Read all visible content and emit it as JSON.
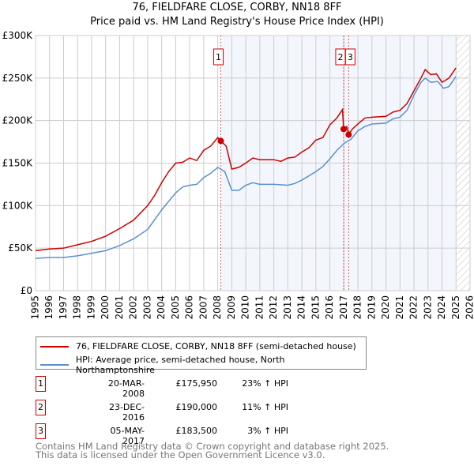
{
  "chart_data": {
    "type": "line",
    "title": "76, FIELDFARE CLOSE, CORBY, NN18 8FF",
    "subtitle": "Price paid vs. HM Land Registry's House Price Index (HPI)",
    "xlim": [
      1995,
      2026
    ],
    "ylim": [
      0,
      300000
    ],
    "x_ticks": [
      "1995",
      "1996",
      "1997",
      "1998",
      "1999",
      "2000",
      "2001",
      "2002",
      "2003",
      "2004",
      "2005",
      "2006",
      "2007",
      "2008",
      "2009",
      "2010",
      "2011",
      "2012",
      "2013",
      "2014",
      "2015",
      "2016",
      "2017",
      "2018",
      "2019",
      "2020",
      "2021",
      "2022",
      "2023",
      "2024",
      "2025",
      "2026"
    ],
    "y_ticks": [
      {
        "v": 0,
        "label": "£0"
      },
      {
        "v": 50000,
        "label": "£50K"
      },
      {
        "v": 100000,
        "label": "£100K"
      },
      {
        "v": 150000,
        "label": "£150K"
      },
      {
        "v": 200000,
        "label": "£200K"
      },
      {
        "v": 250000,
        "label": "£250K"
      },
      {
        "v": 300000,
        "label": "£300K"
      }
    ],
    "grid": true,
    "shaded_from": 2008.22,
    "hatched_from": 2025.0,
    "series": [
      {
        "name": "76, FIELDFARE CLOSE, CORBY, NN18 8FF (semi-detached house)",
        "color": "#cc0000",
        "x": [
          1995,
          1996,
          1997,
          1998,
          1999,
          2000,
          2001,
          2002,
          2003,
          2003.5,
          2004,
          2004.5,
          2005,
          2005.5,
          2006,
          2006.5,
          2007,
          2007.5,
          2008,
          2008.22,
          2008.6,
          2009,
          2009.5,
          2010,
          2010.5,
          2011,
          2012,
          2012.5,
          2013,
          2013.5,
          2014,
          2014.5,
          2015,
          2015.5,
          2016,
          2016.5,
          2016.9,
          2016.98,
          2017.2,
          2017.34,
          2017.6,
          2018,
          2018.5,
          2019,
          2020,
          2020.5,
          2021,
          2021.5,
          2022,
          2022.5,
          2022.8,
          2023.2,
          2023.6,
          2024,
          2024.5,
          2025
        ],
        "y": [
          47000,
          49000,
          50000,
          54000,
          58000,
          64000,
          73000,
          83000,
          100000,
          112000,
          127000,
          140000,
          150000,
          151000,
          156000,
          153000,
          165000,
          170000,
          180000,
          175950,
          170000,
          143000,
          145000,
          150000,
          156000,
          154000,
          154000,
          152000,
          156000,
          157000,
          163000,
          168000,
          177000,
          180000,
          195000,
          203000,
          213000,
          190000,
          193000,
          183500,
          190000,
          196000,
          203000,
          204000,
          205000,
          210000,
          212000,
          220000,
          235000,
          250000,
          260000,
          254000,
          255000,
          245000,
          250000,
          262000
        ]
      },
      {
        "name": "HPI: Average price, semi-detached house, North Northamptonshire",
        "color": "#5b8fd0",
        "x": [
          1995,
          1996,
          1997,
          1998,
          1999,
          2000,
          2001,
          2002,
          2003,
          2004,
          2005,
          2005.5,
          2006,
          2006.5,
          2007,
          2007.5,
          2008,
          2008.5,
          2009,
          2009.5,
          2010,
          2010.5,
          2011,
          2012,
          2013,
          2013.5,
          2014,
          2015,
          2015.5,
          2016,
          2016.5,
          2017,
          2017.5,
          2018,
          2018.5,
          2019,
          2020,
          2020.5,
          2021,
          2021.5,
          2022,
          2022.5,
          2022.8,
          2023.2,
          2023.7,
          2024.1,
          2024.5,
          2025
        ],
        "y": [
          38000,
          39000,
          39000,
          41000,
          44000,
          47000,
          53000,
          61000,
          72000,
          95000,
          115000,
          122000,
          124000,
          125000,
          133000,
          138000,
          145000,
          140000,
          118000,
          118000,
          124000,
          127000,
          125000,
          125000,
          124000,
          126000,
          130000,
          140000,
          146000,
          155000,
          165000,
          173000,
          178000,
          188000,
          193000,
          196000,
          197000,
          202000,
          204000,
          212000,
          230000,
          245000,
          250000,
          245000,
          246000,
          238000,
          240000,
          252000
        ]
      }
    ],
    "markers": [
      {
        "label": "1",
        "x": 2008.22,
        "y": 175950
      },
      {
        "label": "2",
        "x": 2016.98,
        "y": 190000
      },
      {
        "label": "3",
        "x": 2017.34,
        "y": 183500
      }
    ]
  },
  "legend": {
    "items": [
      {
        "label": "76, FIELDFARE CLOSE, CORBY, NN18 8FF (semi-detached house)",
        "color": "#cc0000"
      },
      {
        "label": "HPI: Average price, semi-detached house, North Northamptonshire",
        "color": "#5b8fd0"
      }
    ]
  },
  "sales": [
    {
      "n": "1",
      "date": "20-MAR-2008",
      "price": "£175,950",
      "hpi": "23% ↑ HPI"
    },
    {
      "n": "2",
      "date": "23-DEC-2016",
      "price": "£190,000",
      "hpi": "11% ↑ HPI"
    },
    {
      "n": "3",
      "date": "05-MAY-2017",
      "price": "£183,500",
      "hpi": "3% ↑ HPI"
    }
  ],
  "footer": {
    "line1": "Contains HM Land Registry data © Crown copyright and database right 2025.",
    "line2": "This data is licensed under the Open Government Licence v3.0."
  }
}
